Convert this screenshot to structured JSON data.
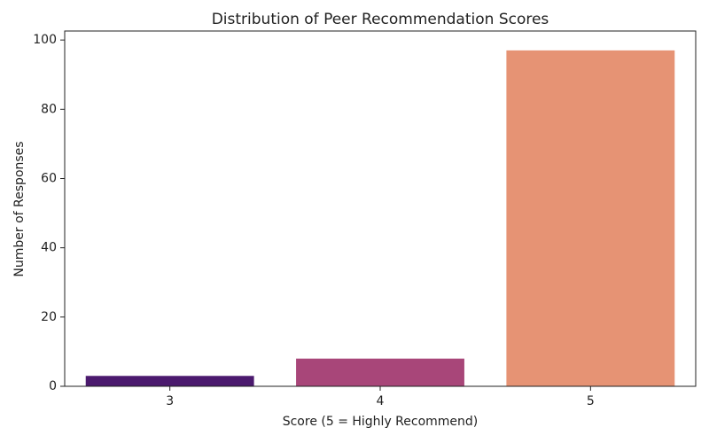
{
  "chart_data": {
    "type": "bar",
    "title": "Distribution of Peer Recommendation Scores",
    "x_label": "Score (5 = Highly Recommend)",
    "y_label": "Number of Responses",
    "categories": [
      "3",
      "4",
      "5"
    ],
    "values": [
      3,
      8,
      97
    ],
    "colors": [
      "#4b1a6e",
      "#a84679",
      "#e69374"
    ],
    "ylim": [
      0,
      102.6
    ],
    "yticks": [
      0,
      20,
      40,
      60,
      80,
      100
    ],
    "grid": false
  }
}
